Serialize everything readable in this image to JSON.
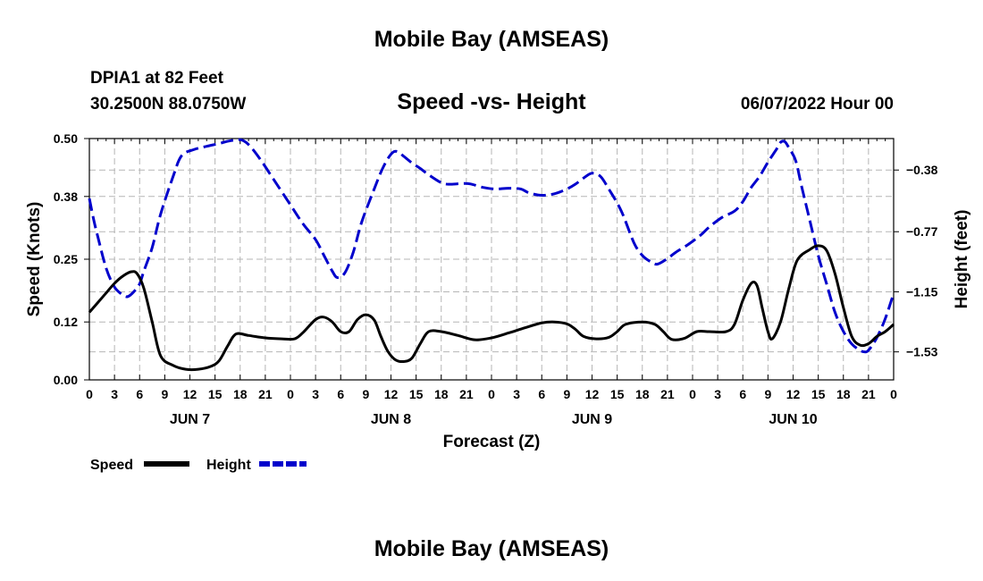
{
  "header": {
    "title": "Mobile Bay (AMSEAS)",
    "station": "DPIA1 at 82 Feet",
    "coords": "30.2500N  88.0750W",
    "datetime": "06/07/2022 Hour 00",
    "footer_title": "Mobile Bay (AMSEAS)"
  },
  "chart_data": {
    "type": "line",
    "title": "Speed -vs- Height",
    "xlabel": "Forecast (Z)",
    "ylabel": "Speed (Knots)",
    "y2label": "Height (feet)",
    "x_range_hours": [
      0,
      96
    ],
    "ylim": [
      0,
      0.5
    ],
    "y2lim": [
      -1.7072,
      -0.1808
    ],
    "yticks": [
      0,
      0.12,
      0.25,
      0.38,
      0.5
    ],
    "ytick_labels": [
      "0.00",
      "0.12",
      "0.25",
      "0.38",
      "0.50"
    ],
    "y2ticks": [
      -1.53,
      -1.15,
      -0.77,
      -0.38
    ],
    "y2tick_labels": [
      "−1.53",
      "−1.15",
      "−0.77",
      "−0.38"
    ],
    "xticks_hours": [
      0,
      3,
      6,
      9,
      12,
      15,
      18,
      21,
      24,
      27,
      30,
      33,
      36,
      39,
      42,
      45,
      48,
      51,
      54,
      57,
      60,
      63,
      66,
      69,
      72,
      75,
      78,
      81,
      84,
      87,
      90,
      93,
      96
    ],
    "xtick_labels": [
      "0",
      "3",
      "6",
      "9",
      "12",
      "15",
      "18",
      "21",
      "0",
      "3",
      "6",
      "9",
      "12",
      "15",
      "18",
      "21",
      "0",
      "3",
      "6",
      "9",
      "12",
      "15",
      "18",
      "21",
      "0",
      "3",
      "6",
      "9",
      "12",
      "15",
      "18",
      "21",
      "0"
    ],
    "day_labels": [
      {
        "label": "JUN 7",
        "hour": 12
      },
      {
        "label": "JUN 8",
        "hour": 36
      },
      {
        "label": "JUN 9",
        "hour": 60
      },
      {
        "label": "JUN 10",
        "hour": 84
      }
    ],
    "grid": true,
    "legend": [
      {
        "name": "Speed",
        "color": "#000000",
        "dash": "solid"
      },
      {
        "name": "Height",
        "color": "#0000cc",
        "dash": "dashed"
      }
    ],
    "series": [
      {
        "name": "Speed",
        "axis": "left",
        "unit": "knots",
        "color": "#000000",
        "points": [
          [
            0,
            0.14
          ],
          [
            1,
            0.16
          ],
          [
            2,
            0.18
          ],
          [
            3,
            0.2
          ],
          [
            4,
            0.215
          ],
          [
            5,
            0.224
          ],
          [
            5.7,
            0.22
          ],
          [
            6.5,
            0.19
          ],
          [
            7.5,
            0.12
          ],
          [
            8.5,
            0.05
          ],
          [
            10,
            0.03
          ],
          [
            11.5,
            0.022
          ],
          [
            13,
            0.022
          ],
          [
            14.5,
            0.028
          ],
          [
            15.5,
            0.04
          ],
          [
            16.5,
            0.07
          ],
          [
            17.5,
            0.095
          ],
          [
            19,
            0.092
          ],
          [
            21,
            0.087
          ],
          [
            23,
            0.085
          ],
          [
            24.5,
            0.085
          ],
          [
            25.5,
            0.098
          ],
          [
            27,
            0.125
          ],
          [
            28,
            0.13
          ],
          [
            29,
            0.12
          ],
          [
            30,
            0.1
          ],
          [
            31,
            0.1
          ],
          [
            32,
            0.125
          ],
          [
            33,
            0.135
          ],
          [
            34,
            0.124
          ],
          [
            34.8,
            0.09
          ],
          [
            35.6,
            0.06
          ],
          [
            36.5,
            0.042
          ],
          [
            37.5,
            0.038
          ],
          [
            38.5,
            0.045
          ],
          [
            39.5,
            0.075
          ],
          [
            40.5,
            0.1
          ],
          [
            42,
            0.1
          ],
          [
            44,
            0.092
          ],
          [
            46,
            0.083
          ],
          [
            48,
            0.087
          ],
          [
            50,
            0.097
          ],
          [
            52,
            0.108
          ],
          [
            54,
            0.118
          ],
          [
            55.5,
            0.12
          ],
          [
            57,
            0.116
          ],
          [
            58,
            0.105
          ],
          [
            59,
            0.09
          ],
          [
            60.5,
            0.085
          ],
          [
            62,
            0.088
          ],
          [
            63,
            0.1
          ],
          [
            64,
            0.115
          ],
          [
            66,
            0.12
          ],
          [
            67.5,
            0.115
          ],
          [
            68.5,
            0.1
          ],
          [
            69.5,
            0.084
          ],
          [
            71,
            0.086
          ],
          [
            72.5,
            0.1
          ],
          [
            74,
            0.1
          ],
          [
            76,
            0.1
          ],
          [
            77,
            0.115
          ],
          [
            78,
            0.165
          ],
          [
            79,
            0.2
          ],
          [
            79.7,
            0.195
          ],
          [
            80.3,
            0.15
          ],
          [
            81,
            0.1
          ],
          [
            81.5,
            0.085
          ],
          [
            82.5,
            0.12
          ],
          [
            83.5,
            0.19
          ],
          [
            84.5,
            0.248
          ],
          [
            86,
            0.27
          ],
          [
            87,
            0.278
          ],
          [
            88,
            0.268
          ],
          [
            89,
            0.22
          ],
          [
            90,
            0.15
          ],
          [
            91,
            0.09
          ],
          [
            92,
            0.072
          ],
          [
            93,
            0.075
          ],
          [
            94,
            0.09
          ],
          [
            95,
            0.1
          ],
          [
            96,
            0.115
          ]
        ]
      },
      {
        "name": "Height",
        "axis": "right",
        "unit": "feet",
        "color": "#0000cc",
        "points": [
          [
            0,
            -0.56
          ],
          [
            0.5,
            -0.69
          ],
          [
            1,
            -0.8
          ],
          [
            2,
            -1
          ],
          [
            3,
            -1.12
          ],
          [
            4,
            -1.17
          ],
          [
            4.6,
            -1.18
          ],
          [
            5.3,
            -1.15
          ],
          [
            6,
            -1.1
          ],
          [
            6.5,
            -1.02
          ],
          [
            7.5,
            -0.87
          ],
          [
            8.5,
            -0.66
          ],
          [
            10,
            -0.42
          ],
          [
            11,
            -0.29
          ],
          [
            12.5,
            -0.25
          ],
          [
            14,
            -0.23
          ],
          [
            15.5,
            -0.212
          ],
          [
            16.5,
            -0.198
          ],
          [
            17.5,
            -0.19
          ],
          [
            18.3,
            -0.192
          ],
          [
            19.2,
            -0.23
          ],
          [
            20.5,
            -0.32
          ],
          [
            22,
            -0.44
          ],
          [
            24,
            -0.6
          ],
          [
            25.5,
            -0.72
          ],
          [
            27,
            -0.82
          ],
          [
            28,
            -0.92
          ],
          [
            29,
            -1.02
          ],
          [
            29.6,
            -1.06
          ],
          [
            30.5,
            -1.03
          ],
          [
            31.5,
            -0.9
          ],
          [
            32.5,
            -0.71
          ],
          [
            34,
            -0.5
          ],
          [
            35,
            -0.37
          ],
          [
            36,
            -0.28
          ],
          [
            36.7,
            -0.262
          ],
          [
            37.5,
            -0.292
          ],
          [
            38.5,
            -0.335
          ],
          [
            39.5,
            -0.37
          ],
          [
            40.5,
            -0.41
          ],
          [
            42,
            -0.46
          ],
          [
            43,
            -0.47
          ],
          [
            44.5,
            -0.465
          ],
          [
            45.5,
            -0.468
          ],
          [
            47,
            -0.49
          ],
          [
            48.5,
            -0.5
          ],
          [
            50,
            -0.495
          ],
          [
            51.5,
            -0.5
          ],
          [
            52.5,
            -0.525
          ],
          [
            54,
            -0.54
          ],
          [
            55.5,
            -0.53
          ],
          [
            57,
            -0.5
          ],
          [
            58,
            -0.47
          ],
          [
            59,
            -0.43
          ],
          [
            60,
            -0.4
          ],
          [
            61,
            -0.42
          ],
          [
            62,
            -0.5
          ],
          [
            63.5,
            -0.64
          ],
          [
            65,
            -0.84
          ],
          [
            66,
            -0.92
          ],
          [
            67,
            -0.96
          ],
          [
            67.8,
            -0.975
          ],
          [
            69,
            -0.94
          ],
          [
            70,
            -0.9
          ],
          [
            71.5,
            -0.85
          ],
          [
            73,
            -0.79
          ],
          [
            74,
            -0.74
          ],
          [
            75.5,
            -0.68
          ],
          [
            77,
            -0.64
          ],
          [
            78,
            -0.58
          ],
          [
            79,
            -0.49
          ],
          [
            80,
            -0.42
          ],
          [
            81,
            -0.33
          ],
          [
            82,
            -0.25
          ],
          [
            82.5,
            -0.205
          ],
          [
            83,
            -0.2
          ],
          [
            83.5,
            -0.24
          ],
          [
            84.3,
            -0.32
          ],
          [
            85,
            -0.48
          ],
          [
            86,
            -0.7
          ],
          [
            87,
            -0.92
          ],
          [
            88,
            -1.1
          ],
          [
            89,
            -1.28
          ],
          [
            90,
            -1.4
          ],
          [
            91,
            -1.48
          ],
          [
            92,
            -1.52
          ],
          [
            92.5,
            -1.53
          ],
          [
            93,
            -1.52
          ],
          [
            94,
            -1.44
          ],
          [
            95,
            -1.32
          ],
          [
            96,
            -1.16
          ]
        ]
      }
    ]
  }
}
